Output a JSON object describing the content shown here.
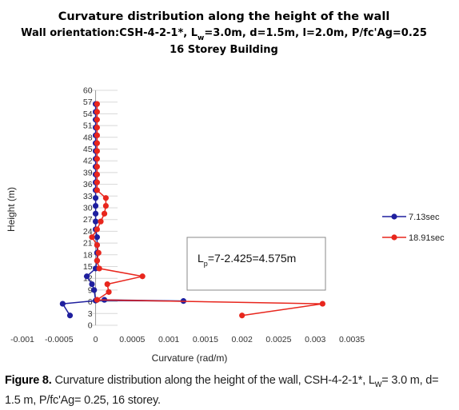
{
  "chart_data": {
    "type": "line",
    "title": "Curvature distribution along the height of the wall",
    "subtitle_prefix": "Wall orientation:CSH-4-2-1*, L",
    "subtitle_sub": "w",
    "subtitle_suffix": "=3.0m, d=1.5m, l=2.0m, P/fc'Ag=0.25",
    "subtitle2": "16 Storey Building",
    "xlabel": "Curvature (rad/m)",
    "ylabel": "Height (m)",
    "xlim": [
      -0.001,
      0.0035
    ],
    "ylim": [
      0,
      60
    ],
    "x_ticks": [
      "-0.001",
      "-0.0005",
      "0",
      "0.0005",
      "0.001",
      "0.0015",
      "0.002",
      "0.0025",
      "0.003",
      "0.0035"
    ],
    "x_tick_values": [
      -0.001,
      -0.0005,
      0,
      0.0005,
      0.001,
      0.0015,
      0.002,
      0.0025,
      0.003,
      0.0035
    ],
    "y_ticks": [
      "0",
      "3",
      "6",
      "9",
      "12",
      "15",
      "18",
      "21",
      "24",
      "27",
      "30",
      "33",
      "36",
      "39",
      "42",
      "45",
      "48",
      "51",
      "54",
      "57",
      "60"
    ],
    "y_tick_values": [
      0,
      3,
      6,
      9,
      12,
      15,
      18,
      21,
      24,
      27,
      30,
      33,
      36,
      39,
      42,
      45,
      48,
      51,
      54,
      57,
      60
    ],
    "grid": true,
    "legend_position": "right",
    "series": [
      {
        "name": "7.13sec",
        "color": "#1f1f9e",
        "points": [
          [
            -0.00035,
            2.5
          ],
          [
            -0.00045,
            5.5
          ],
          [
            0.00012,
            6.5
          ],
          [
            0.0012,
            6.2
          ],
          [
            0.0,
            6.3
          ],
          [
            -2e-05,
            9
          ],
          [
            -5e-05,
            10.5
          ],
          [
            -0.00012,
            12.5
          ],
          [
            0,
            14.5
          ],
          [
            2e-05,
            16.5
          ],
          [
            2e-05,
            18.5
          ],
          [
            2e-05,
            20.5
          ],
          [
            2e-05,
            22.5
          ],
          [
            0,
            24.5
          ],
          [
            0,
            26.5
          ],
          [
            0,
            28.5
          ],
          [
            0,
            30.5
          ],
          [
            0,
            32.5
          ],
          [
            0,
            34.5
          ],
          [
            0,
            36.5
          ],
          [
            0,
            38.5
          ],
          [
            0,
            40.5
          ],
          [
            0,
            42.5
          ],
          [
            0,
            44.5
          ],
          [
            0,
            46.5
          ],
          [
            0,
            48.5
          ],
          [
            0,
            50.5
          ],
          [
            0,
            52.5
          ],
          [
            0,
            54.5
          ],
          [
            0,
            56.5
          ]
        ]
      },
      {
        "name": "18.91sec",
        "color": "#e8261d",
        "points": [
          [
            0.002,
            2.5
          ],
          [
            0.0031,
            5.5
          ],
          [
            2e-05,
            6.5
          ],
          [
            0.00018,
            8.5
          ],
          [
            0.00016,
            10.5
          ],
          [
            0.00064,
            12.5
          ],
          [
            5e-05,
            14.5
          ],
          [
            2e-05,
            16.5
          ],
          [
            4e-05,
            18.5
          ],
          [
            2e-05,
            20.5
          ],
          [
            -5e-05,
            22.5
          ],
          [
            2e-05,
            24.5
          ],
          [
            7e-05,
            26.5
          ],
          [
            0.00012,
            28.5
          ],
          [
            0.00014,
            30.5
          ],
          [
            0.00014,
            32.5
          ],
          [
            2e-05,
            34.5
          ],
          [
            2e-05,
            36.5
          ],
          [
            2e-05,
            38.5
          ],
          [
            2e-05,
            40.5
          ],
          [
            2e-05,
            42.5
          ],
          [
            2e-05,
            44.5
          ],
          [
            2e-05,
            46.5
          ],
          [
            2e-05,
            48.5
          ],
          [
            2e-05,
            50.5
          ],
          [
            2e-05,
            52.5
          ],
          [
            2e-05,
            54.5
          ],
          [
            2e-05,
            56.5
          ]
        ]
      }
    ],
    "annotation_prefix": "L",
    "annotation_sub": "p",
    "annotation_suffix": "=7-2.425=4.575m"
  },
  "caption": {
    "label": "Figure 8.",
    "text_before_sub": " Curvature distribution along the height of the wall, CSH-4-2-1*, L",
    "sub": "w",
    "text_after_sub": "= 3.0 m, d= 1.5 m, P/fc'Ag= 0.25, 16 storey."
  }
}
